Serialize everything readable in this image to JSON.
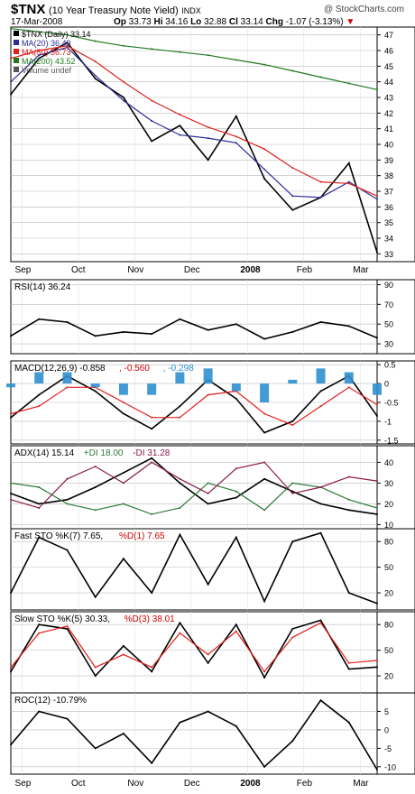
{
  "header": {
    "symbol": "$TNX",
    "name": "(10 Year Treasury Note Yield)",
    "exchange": "INDX",
    "date": "17-Mar-2008",
    "open_label": "Op",
    "open": "33.73",
    "high_label": "Hi",
    "high": "34.16",
    "low_label": "Lo",
    "low": "32.88",
    "close_label": "Cl",
    "close": "33.14",
    "change_label": "Chg",
    "change": "-1.07 (-3.13%)",
    "watermark": "@ StockCharts.com"
  },
  "colors": {
    "price_up": "#000000",
    "price_down": "#cc0000",
    "ma20": "#2b2b9a",
    "ma50": "#e0201b",
    "ma200": "#1f7a1f",
    "macd_hist": "#2f8fd0",
    "di_plus": "#2f7a3a",
    "di_minus": "#8a1a4a",
    "grid": "#bbbbbb"
  },
  "xaxis": {
    "labels": [
      "Sep",
      "Oct",
      "Nov",
      "Dec",
      "2008",
      "Feb",
      "Mar"
    ]
  },
  "panels": [
    {
      "id": "price",
      "legend": [
        {
          "label": "$TNX (Daily) 33.14",
          "color": "#000000"
        },
        {
          "label": "MA(20) 36.49",
          "color": "#2b2b9a"
        },
        {
          "label": "MA(50) 36.73",
          "color": "#e0201b"
        },
        {
          "label": "MA(200) 43.52",
          "color": "#1f7a1f"
        },
        {
          "label": "Volume undef",
          "color": "#555555"
        }
      ]
    },
    {
      "id": "rsi",
      "legend": [
        {
          "label": "RSI(14) 36.24",
          "color": "#000000"
        }
      ]
    },
    {
      "id": "macd",
      "legend": [
        {
          "label": "MACD(12,26,9) -0.858",
          "color": "#000000"
        },
        {
          "label": ", -0.560",
          "color": "#cc0000"
        },
        {
          "label": ", -0.298",
          "color": "#2f8fd0"
        }
      ]
    },
    {
      "id": "adx",
      "legend": [
        {
          "label": "ADX(14) 15.14",
          "color": "#000000"
        },
        {
          "label": "+DI 18.00",
          "color": "#2f7a3a"
        },
        {
          "label": "-DI 31.28",
          "color": "#8a1a4a"
        }
      ]
    },
    {
      "id": "fsto",
      "legend": [
        {
          "label": "Fast STO %K(7) 7.65,",
          "color": "#000000"
        },
        {
          "label": "%D(1) 7.65",
          "color": "#cc0000"
        }
      ]
    },
    {
      "id": "ssto",
      "legend": [
        {
          "label": "Slow STO %K(5) 30.33,",
          "color": "#000000"
        },
        {
          "label": "%D(3) 38.01",
          "color": "#cc0000"
        }
      ]
    },
    {
      "id": "roc",
      "legend": [
        {
          "label": "ROC(12) -10.79%",
          "color": "#000000"
        }
      ]
    }
  ],
  "chart_data": [
    {
      "type": "candlestick-line",
      "title": "$TNX (10 Year Treasury Note Yield) INDX",
      "ylim": [
        32.5,
        47.5
      ],
      "ticks": [
        33,
        34,
        35,
        36,
        37,
        38,
        39,
        40,
        41,
        42,
        43,
        44,
        45,
        46,
        47
      ],
      "series": [
        {
          "name": "$TNX (Daily)",
          "x": [
            0,
            10,
            20,
            30,
            40,
            50,
            60,
            70,
            80,
            90,
            100,
            110,
            120,
            130
          ],
          "values": [
            43.2,
            45.5,
            46.5,
            44.2,
            43.0,
            40.2,
            41.2,
            39.0,
            41.8,
            37.8,
            35.8,
            36.6,
            38.8,
            33.1
          ]
        },
        {
          "name": "MA(20)",
          "x": [
            0,
            10,
            20,
            30,
            40,
            50,
            60,
            70,
            80,
            90,
            100,
            110,
            120,
            130
          ],
          "values": [
            44.0,
            45.7,
            46.2,
            44.4,
            42.8,
            41.5,
            40.6,
            40.4,
            40.1,
            38.4,
            36.7,
            36.6,
            37.6,
            36.5
          ]
        },
        {
          "name": "MA(50)",
          "x": [
            0,
            10,
            20,
            30,
            40,
            50,
            60,
            70,
            80,
            90,
            100,
            110,
            120,
            130
          ],
          "values": [
            45.5,
            46.0,
            46.3,
            45.3,
            44.0,
            42.8,
            41.9,
            41.1,
            40.5,
            39.7,
            38.5,
            37.6,
            37.5,
            36.7
          ]
        },
        {
          "name": "MA(200)",
          "x": [
            0,
            10,
            20,
            30,
            40,
            50,
            60,
            70,
            80,
            90,
            100,
            110,
            120,
            130
          ],
          "values": [
            47.4,
            47.2,
            47.0,
            46.6,
            46.3,
            46.1,
            45.9,
            45.7,
            45.4,
            45.1,
            44.7,
            44.3,
            43.9,
            43.5
          ]
        }
      ]
    },
    {
      "type": "line",
      "title": "RSI(14)",
      "ylim": [
        20,
        95
      ],
      "ticks": [
        30,
        50,
        70,
        90
      ],
      "series": [
        {
          "name": "RSI(14)",
          "x": [
            0,
            10,
            20,
            30,
            40,
            50,
            60,
            70,
            80,
            90,
            100,
            110,
            120,
            130
          ],
          "values": [
            38,
            55,
            52,
            38,
            42,
            40,
            55,
            44,
            50,
            35,
            42,
            52,
            48,
            36
          ]
        }
      ]
    },
    {
      "type": "line+bar",
      "title": "MACD(12,26,9)",
      "ylim": [
        -1.6,
        0.6
      ],
      "ticks": [
        -1.5,
        -1.0,
        -0.5,
        0.0,
        0.5
      ],
      "series": [
        {
          "name": "MACD",
          "x": [
            0,
            10,
            20,
            30,
            40,
            50,
            60,
            70,
            80,
            90,
            100,
            110,
            120,
            130
          ],
          "values": [
            -0.9,
            -0.3,
            0.2,
            -0.2,
            -0.8,
            -1.2,
            -0.6,
            0.1,
            -0.4,
            -1.3,
            -1.0,
            -0.2,
            0.2,
            -0.86
          ]
        },
        {
          "name": "Signal",
          "x": [
            0,
            10,
            20,
            30,
            40,
            50,
            60,
            70,
            80,
            90,
            100,
            110,
            120,
            130
          ],
          "values": [
            -0.8,
            -0.6,
            -0.1,
            -0.1,
            -0.5,
            -0.9,
            -0.9,
            -0.3,
            -0.2,
            -0.8,
            -1.1,
            -0.6,
            -0.1,
            -0.56
          ]
        },
        {
          "name": "Histogram",
          "x": [
            0,
            10,
            20,
            30,
            40,
            50,
            60,
            70,
            80,
            90,
            100,
            110,
            120,
            130
          ],
          "values": [
            -0.1,
            0.3,
            0.3,
            -0.1,
            -0.3,
            -0.3,
            0.3,
            0.4,
            -0.2,
            -0.5,
            0.1,
            0.4,
            0.3,
            -0.3
          ]
        }
      ]
    },
    {
      "type": "line",
      "title": "ADX(14)",
      "ylim": [
        8,
        48
      ],
      "ticks": [
        10,
        20,
        30,
        40
      ],
      "series": [
        {
          "name": "ADX(14)",
          "x": [
            0,
            10,
            20,
            30,
            40,
            50,
            60,
            70,
            80,
            90,
            100,
            110,
            120,
            130
          ],
          "values": [
            25,
            20,
            22,
            28,
            35,
            42,
            30,
            20,
            23,
            32,
            26,
            20,
            17,
            15
          ]
        },
        {
          "name": "+DI",
          "x": [
            0,
            10,
            20,
            30,
            40,
            50,
            60,
            70,
            80,
            90,
            100,
            110,
            120,
            130
          ],
          "values": [
            30,
            28,
            20,
            17,
            20,
            15,
            18,
            30,
            26,
            17,
            30,
            28,
            22,
            18
          ]
        },
        {
          "name": "-DI",
          "x": [
            0,
            10,
            20,
            30,
            40,
            50,
            60,
            70,
            80,
            90,
            100,
            110,
            120,
            130
          ],
          "values": [
            22,
            18,
            32,
            38,
            30,
            40,
            32,
            25,
            37,
            40,
            25,
            28,
            33,
            31
          ]
        }
      ]
    },
    {
      "type": "line",
      "title": "Fast STO %K(7) %D(1)",
      "ylim": [
        0,
        95
      ],
      "ticks": [
        20,
        50,
        80
      ],
      "series": [
        {
          "name": "%K(7)",
          "x": [
            0,
            10,
            20,
            30,
            40,
            50,
            60,
            70,
            80,
            90,
            100,
            110,
            120,
            130
          ],
          "values": [
            20,
            85,
            70,
            15,
            60,
            20,
            88,
            30,
            85,
            10,
            80,
            90,
            20,
            7.65
          ]
        }
      ]
    },
    {
      "type": "line",
      "title": "Slow STO %K(5) %D(3)",
      "ylim": [
        0,
        95
      ],
      "ticks": [
        20,
        50,
        80
      ],
      "series": [
        {
          "name": "%K(5)",
          "x": [
            0,
            10,
            20,
            30,
            40,
            50,
            60,
            70,
            80,
            90,
            100,
            110,
            120,
            130
          ],
          "values": [
            25,
            80,
            75,
            20,
            55,
            25,
            82,
            35,
            80,
            18,
            75,
            85,
            28,
            30.33
          ]
        },
        {
          "name": "%D(3)",
          "x": [
            0,
            10,
            20,
            30,
            40,
            50,
            60,
            70,
            80,
            90,
            100,
            110,
            120,
            130
          ],
          "values": [
            30,
            70,
            78,
            30,
            45,
            30,
            70,
            45,
            72,
            25,
            65,
            82,
            35,
            38.01
          ]
        }
      ]
    },
    {
      "type": "line",
      "title": "ROC(12)",
      "ylim": [
        -12,
        10
      ],
      "ticks": [
        -10,
        -5,
        0,
        5
      ],
      "series": [
        {
          "name": "ROC(12)",
          "x": [
            0,
            10,
            20,
            30,
            40,
            50,
            60,
            70,
            80,
            90,
            100,
            110,
            120,
            130
          ],
          "values": [
            -4,
            5,
            3,
            -5,
            -1,
            -9,
            2,
            5,
            1,
            -10,
            -3,
            8,
            2,
            -10.79
          ]
        }
      ]
    }
  ]
}
